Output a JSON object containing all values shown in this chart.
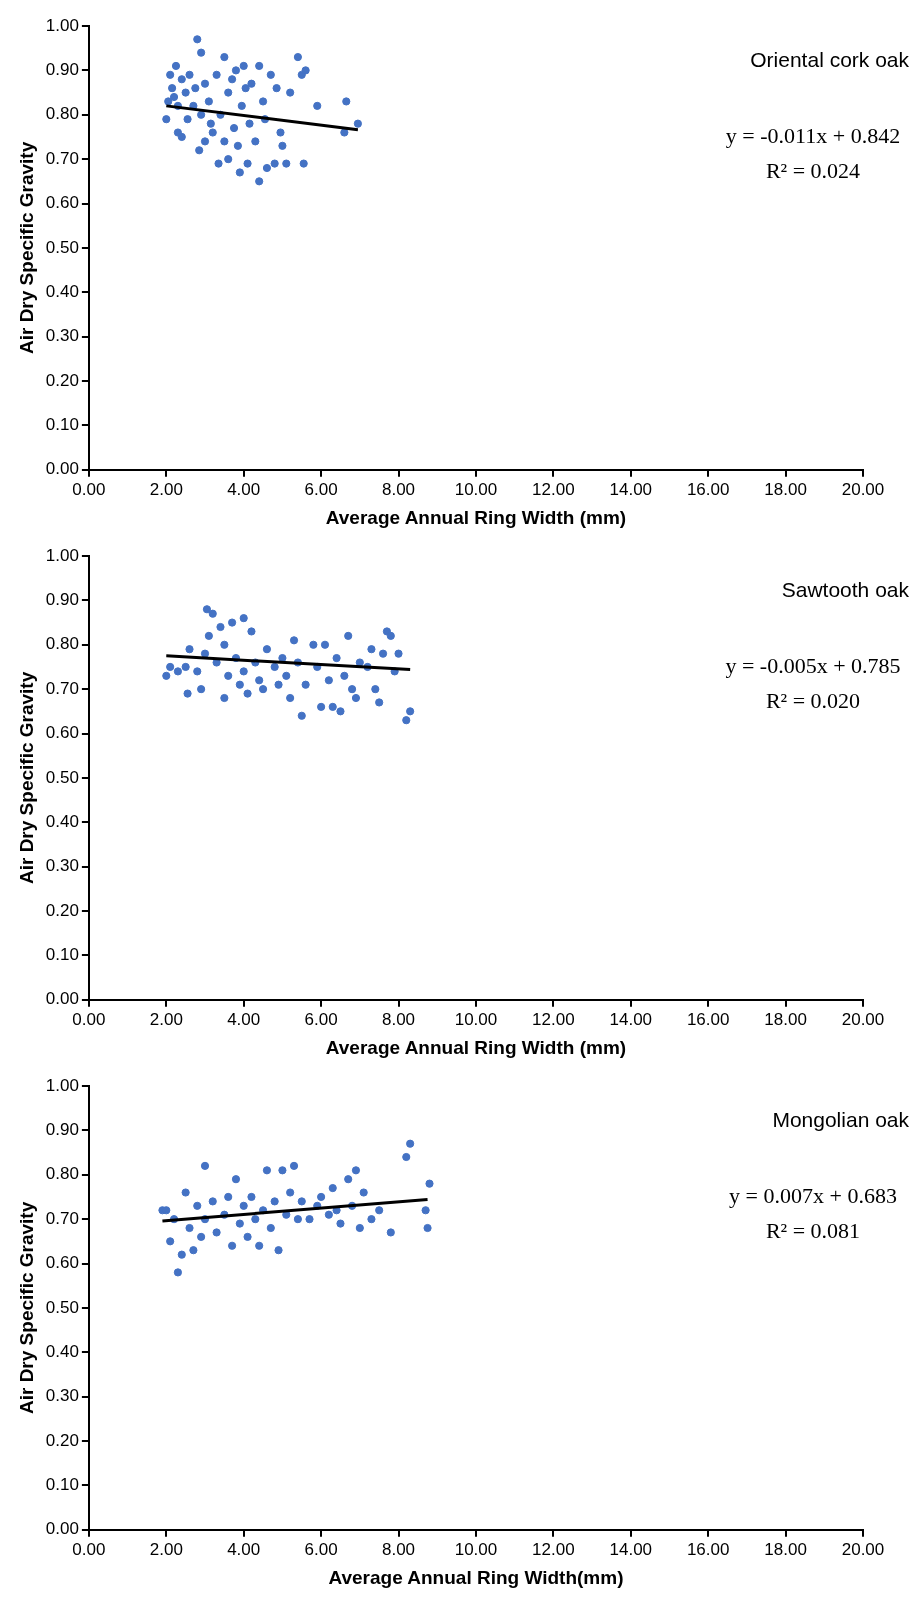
{
  "chart_data": [
    {
      "type": "scatter",
      "title": "Oriental cork oak",
      "xlabel": "Average Annual Ring Width (mm)",
      "ylabel": "Air Dry Specific Gravity",
      "xlim": [
        0,
        20
      ],
      "xticks": [
        {
          "value": 0,
          "label": "0.00"
        },
        {
          "value": 2,
          "label": "2.00"
        },
        {
          "value": 4,
          "label": "4.00"
        },
        {
          "value": 6,
          "label": "6.00"
        },
        {
          "value": 8,
          "label": "8.00"
        },
        {
          "value": 10,
          "label": "10.00"
        },
        {
          "value": 12,
          "label": "12.00"
        },
        {
          "value": 14,
          "label": "14.00"
        },
        {
          "value": 16,
          "label": "16.00"
        },
        {
          "value": 18,
          "label": "18.00"
        },
        {
          "value": 20,
          "label": "20.00"
        }
      ],
      "ylim": [
        0,
        1
      ],
      "yticks": [
        {
          "value": 0,
          "label": "0.00"
        },
        {
          "value": 0.1,
          "label": "0.10"
        },
        {
          "value": 0.2,
          "label": "0.20"
        },
        {
          "value": 0.3,
          "label": "0.30"
        },
        {
          "value": 0.4,
          "label": "0.40"
        },
        {
          "value": 0.5,
          "label": "0.50"
        },
        {
          "value": 0.6,
          "label": "0.60"
        },
        {
          "value": 0.7,
          "label": "0.70"
        },
        {
          "value": 0.8,
          "label": "0.80"
        },
        {
          "value": 0.9,
          "label": "0.90"
        },
        {
          "value": 1,
          "label": "1.00"
        }
      ],
      "grid": false,
      "legend": false,
      "annotations": [
        "y = -0.011x + 0.842",
        "R² = 0.024"
      ],
      "series": [
        {
          "type": "scatter",
          "color": "#4472c4",
          "marker": "circle",
          "x": [
            2.0,
            2.05,
            2.1,
            2.15,
            2.2,
            2.25,
            2.3,
            2.3,
            2.4,
            2.4,
            2.5,
            2.55,
            2.6,
            2.7,
            2.75,
            2.8,
            2.85,
            2.9,
            2.9,
            3.0,
            3.0,
            3.1,
            3.15,
            3.2,
            3.3,
            3.35,
            3.4,
            3.5,
            3.5,
            3.6,
            3.6,
            3.7,
            3.75,
            3.8,
            3.85,
            3.9,
            3.95,
            4.0,
            4.05,
            4.1,
            4.15,
            4.2,
            4.3,
            4.4,
            4.4,
            4.5,
            4.55,
            4.6,
            4.7,
            4.8,
            4.85,
            4.95,
            5.0,
            5.1,
            5.2,
            5.4,
            5.5,
            5.55,
            5.6,
            5.9,
            6.6,
            6.65,
            6.95
          ],
          "values": [
            0.79,
            0.83,
            0.89,
            0.86,
            0.84,
            0.91,
            0.82,
            0.76,
            0.88,
            0.75,
            0.85,
            0.79,
            0.89,
            0.82,
            0.86,
            0.97,
            0.72,
            0.94,
            0.8,
            0.87,
            0.74,
            0.83,
            0.78,
            0.76,
            0.89,
            0.69,
            0.8,
            0.93,
            0.74,
            0.85,
            0.7,
            0.88,
            0.77,
            0.9,
            0.73,
            0.67,
            0.82,
            0.91,
            0.86,
            0.69,
            0.78,
            0.87,
            0.74,
            0.65,
            0.91,
            0.83,
            0.79,
            0.68,
            0.89,
            0.69,
            0.86,
            0.76,
            0.73,
            0.69,
            0.85,
            0.93,
            0.89,
            0.69,
            0.9,
            0.82,
            0.76,
            0.83,
            0.78
          ]
        },
        {
          "type": "line",
          "color": "#000000",
          "marker": "none",
          "line_style": "solid",
          "x": [
            2.0,
            6.95
          ],
          "values": [
            0.82,
            0.766
          ]
        }
      ]
    },
    {
      "type": "scatter",
      "title": "Sawtooth oak",
      "xlabel": "Average Annual Ring Width (mm)",
      "ylabel": "Air Dry Specific Gravity",
      "xlim": [
        0,
        20
      ],
      "xticks": [
        {
          "value": 0,
          "label": "0.00"
        },
        {
          "value": 2,
          "label": "2.00"
        },
        {
          "value": 4,
          "label": "4.00"
        },
        {
          "value": 6,
          "label": "6.00"
        },
        {
          "value": 8,
          "label": "8.00"
        },
        {
          "value": 10,
          "label": "10.00"
        },
        {
          "value": 12,
          "label": "12.00"
        },
        {
          "value": 14,
          "label": "14.00"
        },
        {
          "value": 16,
          "label": "16.00"
        },
        {
          "value": 18,
          "label": "18.00"
        },
        {
          "value": 20,
          "label": "20.00"
        }
      ],
      "ylim": [
        0,
        1
      ],
      "yticks": [
        {
          "value": 0,
          "label": "0.00"
        },
        {
          "value": 0.1,
          "label": "0.10"
        },
        {
          "value": 0.2,
          "label": "0.20"
        },
        {
          "value": 0.3,
          "label": "0.30"
        },
        {
          "value": 0.4,
          "label": "0.40"
        },
        {
          "value": 0.5,
          "label": "0.50"
        },
        {
          "value": 0.6,
          "label": "0.60"
        },
        {
          "value": 0.7,
          "label": "0.70"
        },
        {
          "value": 0.8,
          "label": "0.80"
        },
        {
          "value": 0.9,
          "label": "0.90"
        },
        {
          "value": 1,
          "label": "1.00"
        }
      ],
      "grid": false,
      "legend": false,
      "annotations": [
        "y = -0.005x + 0.785",
        "R² = 0.020"
      ],
      "series": [
        {
          "type": "scatter",
          "color": "#4472c4",
          "marker": "circle",
          "x": [
            2.0,
            2.1,
            2.3,
            2.5,
            2.55,
            2.6,
            2.8,
            2.9,
            3.0,
            3.05,
            3.1,
            3.2,
            3.3,
            3.4,
            3.5,
            3.5,
            3.6,
            3.7,
            3.8,
            3.9,
            4.0,
            4.0,
            4.1,
            4.2,
            4.3,
            4.4,
            4.5,
            4.6,
            4.8,
            4.9,
            5.0,
            5.1,
            5.2,
            5.3,
            5.4,
            5.5,
            5.6,
            5.8,
            5.9,
            6.0,
            6.1,
            6.2,
            6.3,
            6.4,
            6.5,
            6.6,
            6.7,
            6.8,
            6.9,
            7.0,
            7.2,
            7.3,
            7.4,
            7.5,
            7.6,
            7.7,
            7.8,
            7.9,
            8.0,
            8.2,
            8.3
          ],
          "values": [
            0.73,
            0.75,
            0.74,
            0.75,
            0.69,
            0.79,
            0.74,
            0.7,
            0.78,
            0.88,
            0.82,
            0.87,
            0.76,
            0.84,
            0.8,
            0.68,
            0.73,
            0.85,
            0.77,
            0.71,
            0.86,
            0.74,
            0.69,
            0.83,
            0.76,
            0.72,
            0.7,
            0.79,
            0.75,
            0.71,
            0.77,
            0.73,
            0.68,
            0.81,
            0.76,
            0.64,
            0.71,
            0.8,
            0.75,
            0.66,
            0.8,
            0.72,
            0.66,
            0.77,
            0.65,
            0.73,
            0.82,
            0.7,
            0.68,
            0.76,
            0.75,
            0.79,
            0.7,
            0.67,
            0.78,
            0.83,
            0.82,
            0.74,
            0.78,
            0.63,
            0.65
          ]
        },
        {
          "type": "line",
          "color": "#000000",
          "marker": "none",
          "line_style": "solid",
          "x": [
            2.0,
            8.3
          ],
          "values": [
            0.775,
            0.744
          ]
        }
      ]
    },
    {
      "type": "scatter",
      "title": "Mongolian oak",
      "xlabel": "Average Annual Ring Width(mm)",
      "ylabel": "Air Dry Specific Gravity",
      "xlim": [
        0,
        20
      ],
      "xticks": [
        {
          "value": 0,
          "label": "0.00"
        },
        {
          "value": 2,
          "label": "2.00"
        },
        {
          "value": 4,
          "label": "4.00"
        },
        {
          "value": 6,
          "label": "6.00"
        },
        {
          "value": 8,
          "label": "8.00"
        },
        {
          "value": 10,
          "label": "10.00"
        },
        {
          "value": 12,
          "label": "12.00"
        },
        {
          "value": 14,
          "label": "14.00"
        },
        {
          "value": 16,
          "label": "16.00"
        },
        {
          "value": 18,
          "label": "18.00"
        },
        {
          "value": 20,
          "label": "20.00"
        }
      ],
      "ylim": [
        0,
        1
      ],
      "yticks": [
        {
          "value": 0,
          "label": "0.00"
        },
        {
          "value": 0.1,
          "label": "0.10"
        },
        {
          "value": 0.2,
          "label": "0.20"
        },
        {
          "value": 0.3,
          "label": "0.30"
        },
        {
          "value": 0.4,
          "label": "0.40"
        },
        {
          "value": 0.5,
          "label": "0.50"
        },
        {
          "value": 0.6,
          "label": "0.60"
        },
        {
          "value": 0.7,
          "label": "0.70"
        },
        {
          "value": 0.8,
          "label": "0.80"
        },
        {
          "value": 0.9,
          "label": "0.90"
        },
        {
          "value": 1,
          "label": "1.00"
        }
      ],
      "grid": false,
      "legend": false,
      "annotations": [
        "y = 0.007x + 0.683",
        "R² = 0.081"
      ],
      "series": [
        {
          "type": "scatter",
          "color": "#4472c4",
          "marker": "circle",
          "x": [
            1.9,
            2.0,
            2.1,
            2.2,
            2.3,
            2.4,
            2.5,
            2.6,
            2.7,
            2.8,
            2.9,
            3.0,
            3.0,
            3.2,
            3.3,
            3.5,
            3.6,
            3.7,
            3.8,
            3.9,
            4.0,
            4.1,
            4.2,
            4.3,
            4.4,
            4.5,
            4.6,
            4.7,
            4.8,
            4.9,
            5.0,
            5.1,
            5.2,
            5.3,
            5.4,
            5.5,
            5.7,
            5.9,
            6.0,
            6.2,
            6.3,
            6.4,
            6.5,
            6.7,
            6.8,
            6.9,
            7.0,
            7.1,
            7.3,
            7.5,
            7.8,
            8.2,
            8.3,
            8.7,
            8.75,
            8.8
          ],
          "values": [
            0.72,
            0.72,
            0.65,
            0.7,
            0.58,
            0.62,
            0.76,
            0.68,
            0.63,
            0.73,
            0.66,
            0.82,
            0.7,
            0.74,
            0.67,
            0.71,
            0.75,
            0.64,
            0.79,
            0.69,
            0.73,
            0.66,
            0.75,
            0.7,
            0.64,
            0.72,
            0.81,
            0.68,
            0.74,
            0.63,
            0.81,
            0.71,
            0.76,
            0.82,
            0.7,
            0.74,
            0.7,
            0.73,
            0.75,
            0.71,
            0.77,
            0.72,
            0.69,
            0.79,
            0.73,
            0.81,
            0.68,
            0.76,
            0.7,
            0.72,
            0.67,
            0.84,
            0.87,
            0.72,
            0.68,
            0.78
          ]
        },
        {
          "type": "line",
          "color": "#000000",
          "marker": "none",
          "line_style": "solid",
          "x": [
            1.9,
            8.75
          ],
          "values": [
            0.696,
            0.744
          ]
        }
      ]
    }
  ]
}
